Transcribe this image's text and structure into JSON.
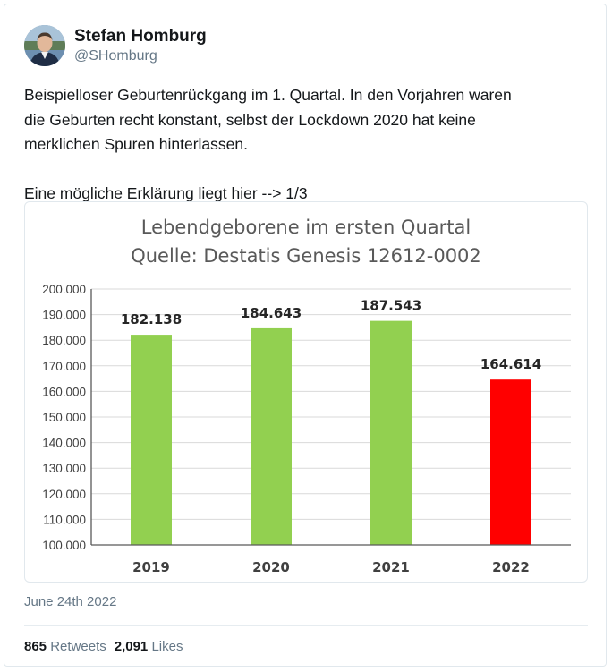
{
  "user": {
    "display_name": "Stefan Homburg",
    "handle": "@SHomburg",
    "avatar_icon": "profile-photo"
  },
  "tweet": {
    "text": "Beispielloser Geburtenrückgang im 1. Quartal. In den Vorjahren waren\ndie Geburten recht konstant, selbst der Lockdown 2020 hat keine\nmerklichen Spuren hinterlassen.\n\nEine mögliche Erklärung liegt hier --> 1/3",
    "timestamp": "June 24th 2022"
  },
  "stats": {
    "retweets_count": "865",
    "retweets_label": "Retweets",
    "likes_count": "2,091",
    "likes_label": "Likes"
  },
  "colors": {
    "green": "#92d050",
    "red": "#ff0000",
    "grid": "#d9d9d9",
    "axis": "#595959"
  },
  "chart_data": {
    "type": "bar",
    "title": "Lebendgeborene im ersten Quartal",
    "subtitle": "Quelle: Destatis Genesis 12612-0002",
    "categories": [
      "2019",
      "2020",
      "2021",
      "2022"
    ],
    "values": [
      182138,
      184643,
      187543,
      164614
    ],
    "value_labels": [
      "182.138",
      "184.643",
      "187.543",
      "164.614"
    ],
    "bar_colors": [
      "#92d050",
      "#92d050",
      "#92d050",
      "#ff0000"
    ],
    "ylim": [
      100000,
      200000
    ],
    "yticks": [
      100000,
      110000,
      120000,
      130000,
      140000,
      150000,
      160000,
      170000,
      180000,
      190000,
      200000
    ],
    "ytick_labels": [
      "100.000",
      "110.000",
      "120.000",
      "130.000",
      "140.000",
      "150.000",
      "160.000",
      "170.000",
      "180.000",
      "190.000",
      "200.000"
    ],
    "grid": true,
    "xlabel": "",
    "ylabel": ""
  }
}
